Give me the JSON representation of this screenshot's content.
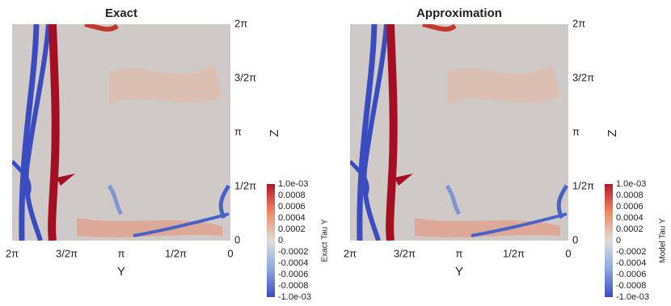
{
  "panels": [
    {
      "title": "Exact",
      "y_axis": {
        "label": "Y",
        "ticks": [
          "2π",
          "3/2π",
          "π",
          "1/2π",
          "0"
        ]
      },
      "z_axis": {
        "label": "Z",
        "ticks": [
          "2π",
          "3/2π",
          "π",
          "1/2π",
          "0"
        ]
      },
      "colorbar": {
        "label": "Exact Tau Y",
        "ticks": [
          "1.0e-03",
          "0.0008",
          "0.0006",
          "0.0004",
          "0.0002",
          "0",
          "-0.0002",
          "-0.0004",
          "-0.0006",
          "-0.0008",
          "-1.0e-03"
        ]
      }
    },
    {
      "title": "Approximation",
      "y_axis": {
        "label": "Y",
        "ticks": [
          "2π",
          "3/2π",
          "π",
          "1/2π",
          "0"
        ]
      },
      "z_axis": {
        "label": "Z",
        "ticks": [
          "2π",
          "3/2π",
          "π",
          "1/2π",
          "0"
        ]
      },
      "colorbar": {
        "label": "Model Tau Y",
        "ticks": [
          "1.0e-03",
          "0.0008",
          "0.0006",
          "0.0004",
          "0.0002",
          "0",
          "-0.0002",
          "-0.0004",
          "-0.0006",
          "-0.0008",
          "-1.0e-03"
        ]
      }
    }
  ]
}
